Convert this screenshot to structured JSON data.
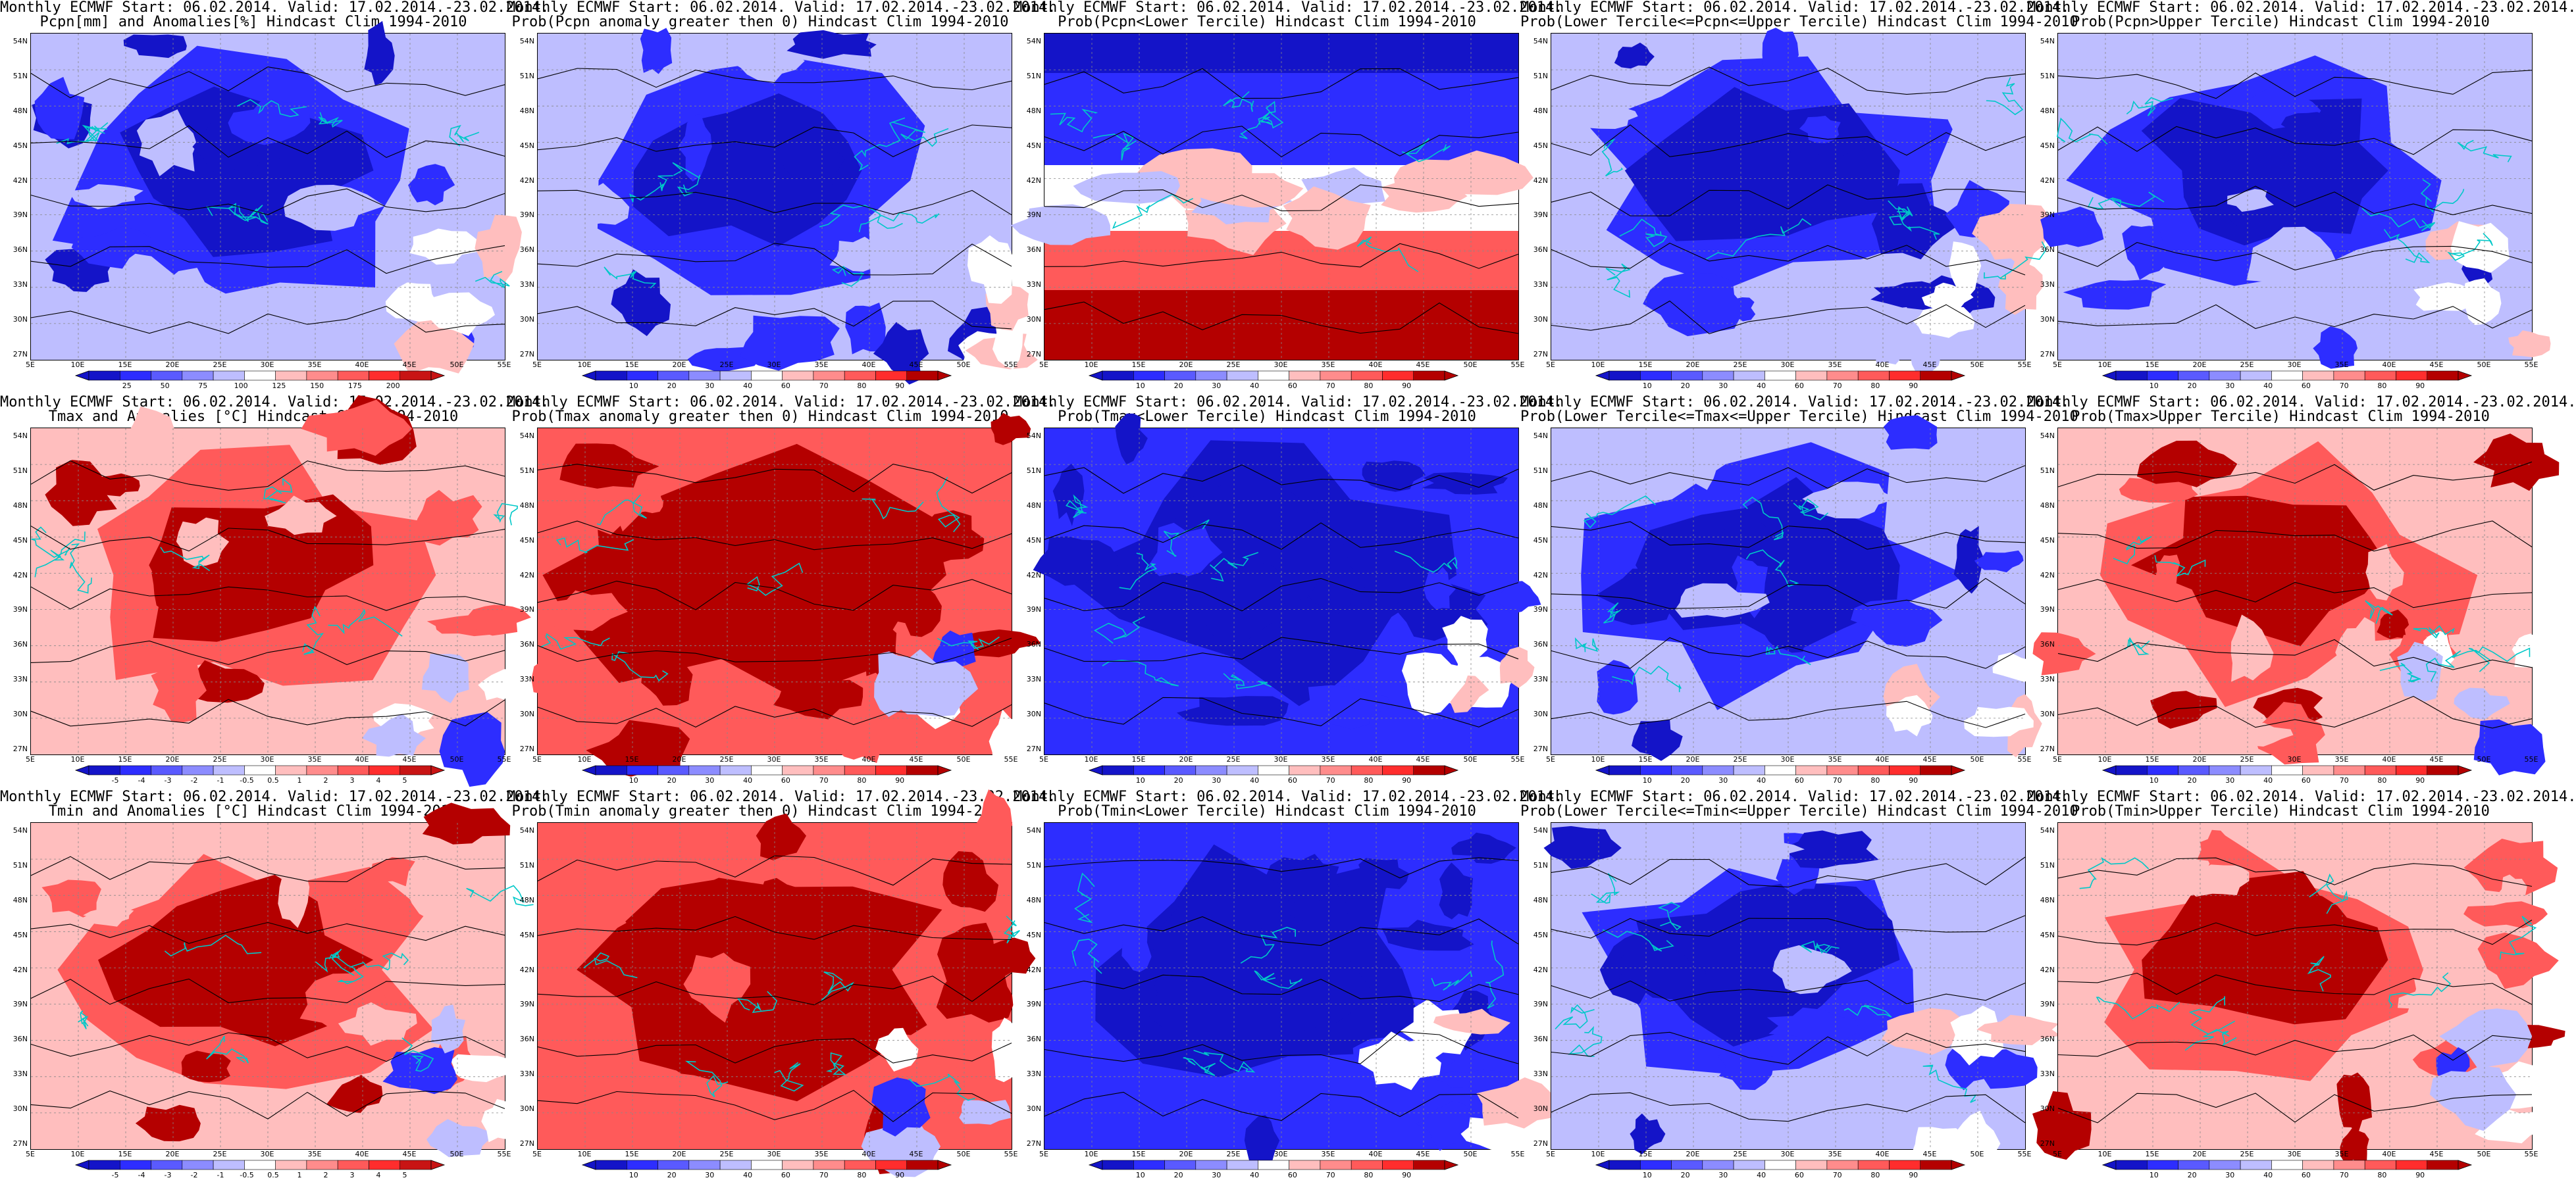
{
  "figure": {
    "rows": [
      {
        "variable": "precipitation",
        "panels": [
          {
            "id": "pcpn-anom",
            "title_line1": "Monthly ECMWF Start: 06.02.2014. Valid: 17.02.2014.-23.02.2014.",
            "title_line2": "Pcpn[mm] and Anomalies[%] Hindcast Clim 1994-2010",
            "palette": "anom",
            "colorbar_labels": [
              "25",
              "50",
              "75",
              "100",
              "125",
              "150",
              "175",
              "200"
            ],
            "dominant": "blue"
          },
          {
            "id": "pcpn-prob-pos",
            "title_line1": "Monthly ECMWF Start: 06.02.2014. Valid: 17.02.2014.-23.02.2014.",
            "title_line2": "Prob(Pcpn anomaly greater then 0) Hindcast Clim 1994-2010",
            "palette": "prob",
            "colorbar_labels": [
              "10",
              "20",
              "30",
              "40",
              "60",
              "70",
              "80",
              "90"
            ],
            "dominant": "blue"
          },
          {
            "id": "pcpn-prob-lower",
            "title_line1": "Monthly ECMWF Start: 06.02.2014. Valid: 17.02.2014.-23.02.2014.",
            "title_line2": "Prob(Pcpn<Lower Tercile) Hindcast Clim 1994-2010",
            "palette": "prob",
            "colorbar_labels": [
              "10",
              "20",
              "30",
              "40",
              "60",
              "70",
              "80",
              "90"
            ],
            "dominant": "split"
          },
          {
            "id": "pcpn-prob-middle",
            "title_line1": "Monthly ECMWF Start: 06.02.2014. Valid: 17.02.2014.-23.02.2014.",
            "title_line2": "Prob(Lower Tercile<=Pcpn<=Upper Tercile) Hindcast Clim 1994-2010",
            "palette": "prob",
            "colorbar_labels": [
              "10",
              "20",
              "30",
              "40",
              "60",
              "70",
              "80",
              "90"
            ],
            "dominant": "blue"
          },
          {
            "id": "pcpn-prob-upper",
            "title_line1": "Monthly ECMWF Start: 06.02.2014. Valid: 17.02.2014.-23.02.2014.",
            "title_line2": "Prob(Pcpn>Upper Tercile) Hindcast Clim 1994-2010",
            "palette": "prob",
            "colorbar_labels": [
              "10",
              "20",
              "30",
              "40",
              "60",
              "70",
              "80",
              "90"
            ],
            "dominant": "blue"
          }
        ]
      },
      {
        "variable": "tmax",
        "panels": [
          {
            "id": "tmax-anom",
            "title_line1": "Monthly ECMWF Start: 06.02.2014. Valid: 17.02.2014.-23.02.2014.",
            "title_line2": "Tmax and Anomalies [°C] Hindcast Clim 1994-2010",
            "palette": "anom",
            "colorbar_labels": [
              "-5",
              "-4",
              "-3",
              "-2",
              "-1",
              "-0.5",
              "0.5",
              "1",
              "2",
              "3",
              "4",
              "5"
            ],
            "dominant": "red"
          },
          {
            "id": "tmax-prob-pos",
            "title_line1": "Monthly ECMWF Start: 06.02.2014. Valid: 17.02.2014.-23.02.2014.",
            "title_line2": "Prob(Tmax anomaly greater then 0) Hindcast Clim 1994-2010",
            "palette": "prob",
            "colorbar_labels": [
              "10",
              "20",
              "30",
              "40",
              "60",
              "70",
              "80",
              "90"
            ],
            "dominant": "darkred"
          },
          {
            "id": "tmax-prob-lower",
            "title_line1": "Monthly ECMWF Start: 06.02.2014. Valid: 17.02.2014.-23.02.2014.",
            "title_line2": "Prob(Tmax<Lower Tercile) Hindcast Clim 1994-2010",
            "palette": "prob",
            "colorbar_labels": [
              "10",
              "20",
              "30",
              "40",
              "60",
              "70",
              "80",
              "90"
            ],
            "dominant": "darkblue"
          },
          {
            "id": "tmax-prob-middle",
            "title_line1": "Monthly ECMWF Start: 06.02.2014. Valid: 17.02.2014.-23.02.2014.",
            "title_line2": "Prob(Lower Tercile<=Tmax<=Upper Tercile) Hindcast Clim 1994-2010",
            "palette": "prob",
            "colorbar_labels": [
              "10",
              "20",
              "30",
              "40",
              "60",
              "70",
              "80",
              "90"
            ],
            "dominant": "blue"
          },
          {
            "id": "tmax-prob-upper",
            "title_line1": "Monthly ECMWF Start: 06.02.2014. Valid: 17.02.2014.-23.02.2014.",
            "title_line2": "Prob(Tmax>Upper Tercile) Hindcast Clim 1994-2010",
            "palette": "prob",
            "colorbar_labels": [
              "10",
              "20",
              "30",
              "40",
              "60",
              "70",
              "80",
              "90"
            ],
            "dominant": "red"
          }
        ]
      },
      {
        "variable": "tmin",
        "panels": [
          {
            "id": "tmin-anom",
            "title_line1": "Monthly ECMWF Start: 06.02.2014. Valid: 17.02.2014.-23.02.2014.",
            "title_line2": "Tmin and Anomalies [°C] Hindcast Clim 1994-2010",
            "palette": "anom",
            "colorbar_labels": [
              "-5",
              "-4",
              "-3",
              "-2",
              "-1",
              "-0.5",
              "0.5",
              "1",
              "2",
              "3",
              "4",
              "5"
            ],
            "dominant": "red"
          },
          {
            "id": "tmin-prob-pos",
            "title_line1": "Monthly ECMWF Start: 06.02.2014. Valid: 17.02.2014.-23.02.2014.",
            "title_line2": "Prob(Tmin anomaly greater then 0) Hindcast Clim 1994-2010",
            "palette": "prob",
            "colorbar_labels": [
              "10",
              "20",
              "30",
              "40",
              "60",
              "70",
              "80",
              "90"
            ],
            "dominant": "darkred"
          },
          {
            "id": "tmin-prob-lower",
            "title_line1": "Monthly ECMWF Start: 06.02.2014. Valid: 17.02.2014.-23.02.2014.",
            "title_line2": "Prob(Tmin<Lower Tercile) Hindcast Clim 1994-2010",
            "palette": "prob",
            "colorbar_labels": [
              "10",
              "20",
              "30",
              "40",
              "60",
              "70",
              "80",
              "90"
            ],
            "dominant": "darkblue"
          },
          {
            "id": "tmin-prob-middle",
            "title_line1": "Monthly ECMWF Start: 06.02.2014. Valid: 17.02.2014.-23.02.2014.",
            "title_line2": "Prob(Lower Tercile<=Tmin<=Upper Tercile) Hindcast Clim 1994-2010",
            "palette": "prob",
            "colorbar_labels": [
              "10",
              "20",
              "30",
              "40",
              "60",
              "70",
              "80",
              "90"
            ],
            "dominant": "blue"
          },
          {
            "id": "tmin-prob-upper",
            "title_line1": "Monthly ECMWF Start: 06.02.2014. Valid: 17.02.2014.-23.02.2014.",
            "title_line2": "Prob(Tmin>Upper Tercile) Hindcast Clim 1994-2010",
            "palette": "prob",
            "colorbar_labels": [
              "10",
              "20",
              "30",
              "40",
              "60",
              "70",
              "80",
              "90"
            ],
            "dominant": "red"
          }
        ]
      }
    ],
    "lat_labels": [
      "54N",
      "51N",
      "48N",
      "45N",
      "42N",
      "39N",
      "36N",
      "33N",
      "30N",
      "27N"
    ],
    "lon_labels": [
      "5E",
      "10E",
      "15E",
      "20E",
      "25E",
      "30E",
      "35E",
      "40E",
      "45E",
      "50E",
      "55E"
    ],
    "palettes": {
      "anom": [
        "#1414c8",
        "#2d2dff",
        "#5a5aff",
        "#8c8cff",
        "#bebeff",
        "#ffffff",
        "#ffbebe",
        "#ff8c8c",
        "#ff5a5a",
        "#ff2d2d",
        "#c81414"
      ],
      "prob": [
        "#1414c8",
        "#2d2dff",
        "#5a5aff",
        "#8c8cff",
        "#bebeff",
        "#ffffff",
        "#ffbebe",
        "#ff8c8c",
        "#ff5a5a",
        "#ff2d2d",
        "#b40000"
      ]
    },
    "colors": {
      "darkblue": "#1414c8",
      "blue": "#2d2dff",
      "midblue": "#5a5aff",
      "lightblue": "#bebeff",
      "white": "#ffffff",
      "lightred": "#ffbebe",
      "red": "#ff5a5a",
      "darkred": "#b40000",
      "coastline": "#00c8c8",
      "contour": "#000000"
    }
  }
}
